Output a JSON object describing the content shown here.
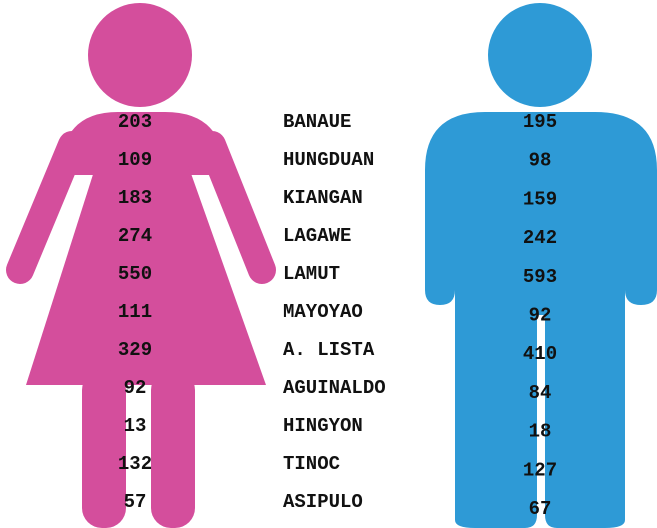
{
  "chart_data": {
    "type": "pictogram",
    "categories": [
      "BANAUE",
      "HUNGDUAN",
      "KIANGAN",
      "LAGAWE",
      "LAMUT",
      "MAYOYAO",
      "A. LISTA",
      "AGUINALDO",
      "HINGYON",
      "TINOC",
      "ASIPULO"
    ],
    "series": [
      {
        "color": "#d44e9c",
        "values": [
          203,
          109,
          183,
          274,
          550,
          111,
          329,
          92,
          13,
          132,
          57
        ]
      },
      {
        "color": "#2e9ad6",
        "values": [
          195,
          98,
          159,
          242,
          593,
          92,
          410,
          84,
          18,
          127,
          67
        ]
      }
    ]
  }
}
